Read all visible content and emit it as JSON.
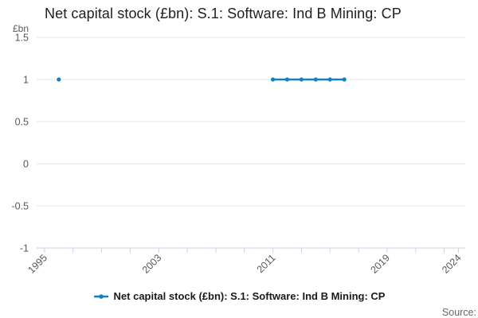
{
  "header": {
    "title": "Net capital stock (£bn): S.1: Software: Ind B Mining: CP"
  },
  "chart_data": {
    "type": "line",
    "title": "Net capital stock (£bn): S.1: Software: Ind B Mining: CP",
    "y_unit_label": "£bn",
    "xlabel": "",
    "ylabel": "£bn",
    "ylim": [
      -1,
      1.5
    ],
    "xlim": [
      1995,
      2024
    ],
    "grid": "horizontal",
    "legend_position": "bottom",
    "y_ticks": [
      1.5,
      1,
      0.5,
      0,
      -0.5,
      -1
    ],
    "x_tick_years": [
      1995,
      1997,
      1999,
      2001,
      2003,
      2005,
      2007,
      2009,
      2011,
      2013,
      2015,
      2017,
      2019,
      2021,
      2023,
      2024
    ],
    "x_labeled_ticks": [
      1995,
      2003,
      2011,
      2019,
      2024
    ],
    "series": [
      {
        "name": "Net capital stock (£bn): S.1: Software: Ind B Mining: CP",
        "color": "#1380c4",
        "points": [
          {
            "year": 1996,
            "value": 1
          },
          {
            "year": 2011,
            "value": 1
          },
          {
            "year": 2012,
            "value": 1
          },
          {
            "year": 2013,
            "value": 1
          },
          {
            "year": 2014,
            "value": 1
          },
          {
            "year": 2015,
            "value": 1
          },
          {
            "year": 2016,
            "value": 1
          }
        ]
      }
    ]
  },
  "legend": {
    "label": "Net capital stock (£bn): S.1: Software: Ind B Mining: CP"
  },
  "footer": {
    "source_label": "Source:"
  },
  "colors": {
    "accent": "#1380c4",
    "grid": "#e6e6e6",
    "axis": "#c8d1e8",
    "muted_text": "#595959",
    "title_text": "#1f1f1f"
  }
}
